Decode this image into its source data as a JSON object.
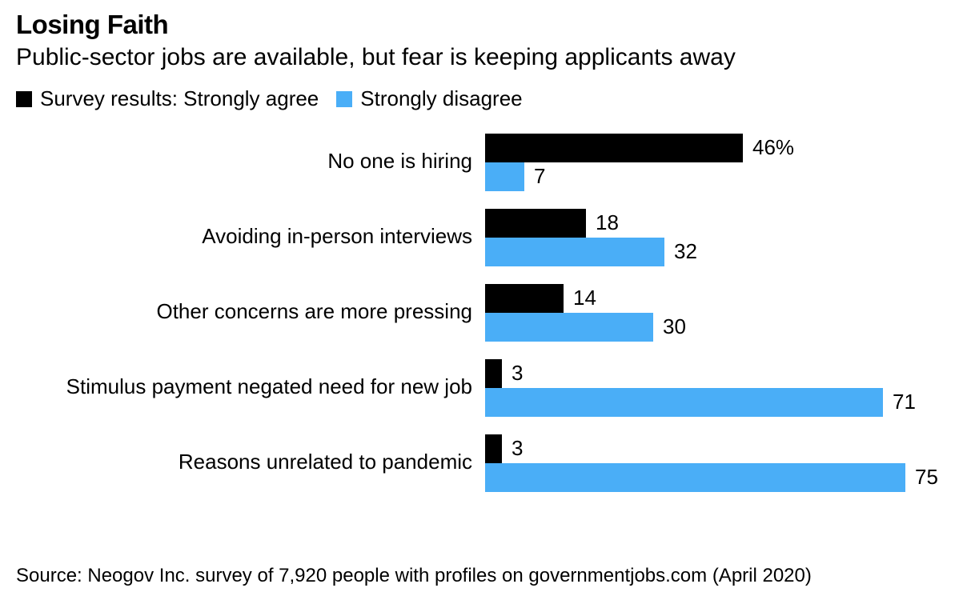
{
  "title": "Losing Faith",
  "subtitle": "Public-sector jobs are available, but fear is keeping applicants away",
  "source": "Source: Neogov Inc. survey of 7,920 people with profiles on governmentjobs.com (April 2020)",
  "legend": {
    "items": [
      {
        "label": "Survey results: Strongly agree",
        "color": "#000000"
      },
      {
        "label": "Strongly disagree",
        "color": "#4aaef7"
      }
    ]
  },
  "chart_data": {
    "type": "bar",
    "orientation": "horizontal",
    "categories": [
      "No one is hiring",
      "Avoiding in-person interviews",
      "Other concerns are more pressing",
      "Stimulus payment negated need for new job",
      "Reasons unrelated to pandemic"
    ],
    "series": [
      {
        "name": "Survey results: Strongly agree",
        "color": "#000000",
        "values": [
          46,
          18,
          14,
          3,
          3
        ],
        "labels": [
          "46%",
          "18",
          "14",
          "3",
          "3"
        ]
      },
      {
        "name": "Strongly disagree",
        "color": "#4aaef7",
        "values": [
          7,
          32,
          30,
          71,
          75
        ],
        "labels": [
          "7",
          "32",
          "30",
          "71",
          "75"
        ]
      }
    ],
    "title": "Losing Faith",
    "xlabel": "",
    "ylabel": "",
    "xlim": [
      0,
      75
    ],
    "grid": false,
    "legend_position": "top-left"
  }
}
